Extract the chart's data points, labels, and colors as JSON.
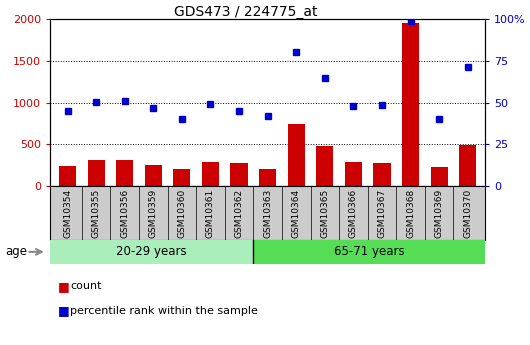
{
  "title": "GDS473 / 224775_at",
  "samples": [
    "GSM10354",
    "GSM10355",
    "GSM10356",
    "GSM10359",
    "GSM10360",
    "GSM10361",
    "GSM10362",
    "GSM10363",
    "GSM10364",
    "GSM10365",
    "GSM10366",
    "GSM10367",
    "GSM10368",
    "GSM10369",
    "GSM10370"
  ],
  "counts": [
    240,
    320,
    320,
    255,
    205,
    295,
    275,
    210,
    750,
    480,
    295,
    280,
    1950,
    225,
    490
  ],
  "percentiles": [
    45,
    50.5,
    51,
    46.5,
    40,
    49.25,
    45.25,
    42,
    80,
    65,
    48,
    48.5,
    99,
    40,
    71
  ],
  "group1_label": "20-29 years",
  "group1_count": 7,
  "group2_label": "65-71 years",
  "group2_count": 8,
  "age_label": "age",
  "count_label": "count",
  "percentile_label": "percentile rank within the sample",
  "bar_color": "#cc0000",
  "dot_color": "#0000cc",
  "group1_bg": "#aaeebb",
  "group2_bg": "#55dd55",
  "tick_bg": "#cccccc",
  "ylim_left": [
    0,
    2000
  ],
  "ylim_right": [
    0,
    100
  ],
  "yticks_left": [
    0,
    500,
    1000,
    1500,
    2000
  ],
  "yticks_right": [
    0,
    25,
    50,
    75,
    100
  ]
}
